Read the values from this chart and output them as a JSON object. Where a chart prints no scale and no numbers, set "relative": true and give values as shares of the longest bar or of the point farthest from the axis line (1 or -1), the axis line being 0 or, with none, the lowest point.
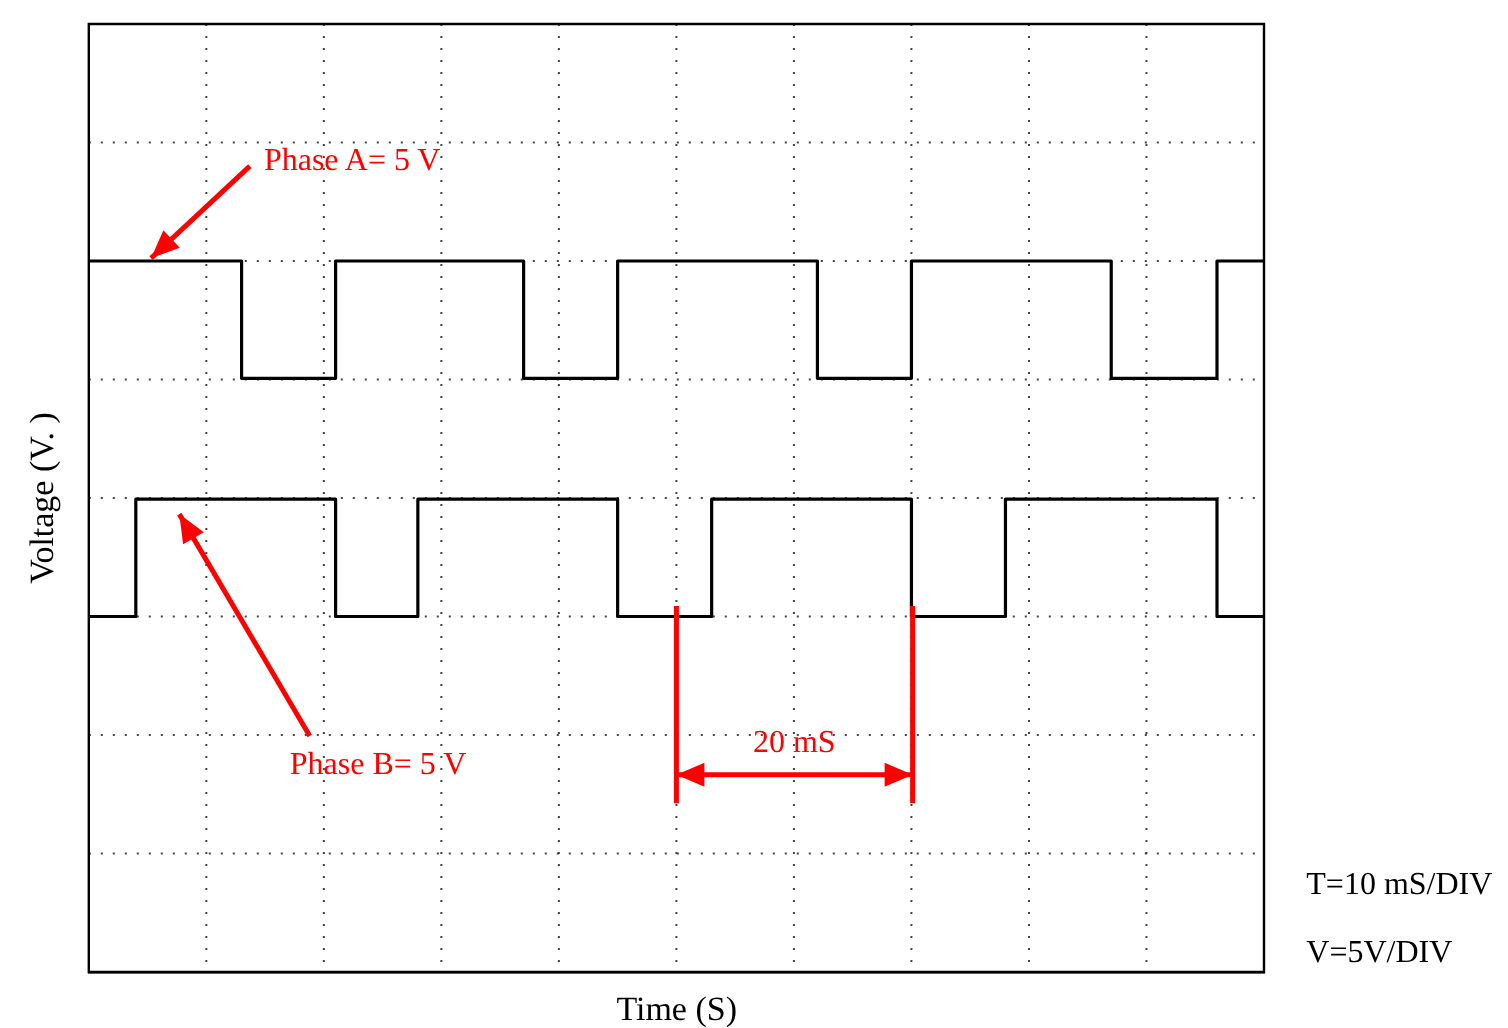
{
  "chart_data": {
    "type": "step",
    "relative": true,
    "ylabel": "Voltage (V. )",
    "grid": true,
    "legend": false,
    "categories": [
      null,
      null,
      null,
      null,
      null,
      null,
      null,
      null,
      null,
      null,
      null,
      null,
      null,
      null,
      null,
      null,
      null,
      null,
      null,
      null,
      null,
      null,
      null,
      null,
      null,
      null,
      null,
      null,
      null,
      null,
      null,
      null,
      null,
      null,
      null,
      null,
      null,
      null,
      null,
      null,
      null,
      null,
      null,
      null,
      null,
      null,
      null,
      null,
      null,
      null,
      null,
      null,
      null,
      null,
      null,
      null,
      null,
      null,
      null,
      null,
      null,
      null,
      null,
      null,
      null,
      null,
      null,
      null,
      null,
      null,
      null,
      null,
      null,
      null,
      null,
      null,
      null,
      null,
      null,
      null,
      null,
      null,
      null,
      null,
      null,
      null,
      null,
      null,
      null,
      null,
      null,
      null,
      null,
      null,
      null,
      null,
      null,
      null,
      null,
      null,
      null
    ],
    "series": [
      {
        "color": "#000000",
        "values": [
          1,
          1,
          1,
          1,
          1,
          1,
          1,
          1,
          1,
          1,
          1,
          1,
          1,
          0.67,
          0.67,
          0.67,
          0.67,
          0.67,
          0.67,
          0.67,
          0.67,
          1,
          1,
          1,
          1,
          1,
          1,
          1,
          1,
          1,
          1,
          1,
          1,
          1,
          1,
          1,
          1,
          0.67,
          0.67,
          0.67,
          0.67,
          0.67,
          0.67,
          0.67,
          0.67,
          1,
          1,
          1,
          1,
          1,
          1,
          1,
          1,
          1,
          1,
          1,
          1,
          1,
          1,
          1,
          1,
          1,
          0.67,
          0.67,
          0.67,
          0.67,
          0.67,
          0.67,
          0.67,
          0.67,
          1,
          1,
          1,
          1,
          1,
          1,
          1,
          1,
          1,
          1,
          1,
          1,
          1,
          1,
          1,
          1,
          1,
          0.67,
          0.67,
          0.67,
          0.67,
          0.67,
          0.67,
          0.67,
          0.67,
          0.67,
          1,
          1,
          1,
          1,
          1
        ]
      },
      {
        "color": "#000000",
        "values": [
          0,
          0,
          0,
          0,
          0.33,
          0.33,
          0.33,
          0.33,
          0.33,
          0.33,
          0.33,
          0.33,
          0.33,
          0.33,
          0.33,
          0.33,
          0.33,
          0.33,
          0.33,
          0.33,
          0.33,
          0,
          0,
          0,
          0,
          0,
          0,
          0,
          0.33,
          0.33,
          0.33,
          0.33,
          0.33,
          0.33,
          0.33,
          0.33,
          0.33,
          0.33,
          0.33,
          0.33,
          0.33,
          0.33,
          0.33,
          0.33,
          0.33,
          0,
          0,
          0,
          0,
          0,
          0,
          0,
          0,
          0.33,
          0.33,
          0.33,
          0.33,
          0.33,
          0.33,
          0.33,
          0.33,
          0.33,
          0.33,
          0.33,
          0.33,
          0.33,
          0.33,
          0.33,
          0.33,
          0.33,
          0,
          0,
          0,
          0,
          0,
          0,
          0,
          0,
          0.33,
          0.33,
          0.33,
          0.33,
          0.33,
          0.33,
          0.33,
          0.33,
          0.33,
          0.33,
          0.33,
          0.33,
          0.33,
          0.33,
          0.33,
          0.33,
          0.33,
          0.33,
          0,
          0,
          0,
          0,
          0
        ]
      }
    ],
    "annotations": [
      "Phase A= 5 V",
      "Phase B= 5 V",
      "20 mS",
      "T=10 mS/DIV",
      "V=5V/DIV",
      "Time (S)"
    ]
  }
}
